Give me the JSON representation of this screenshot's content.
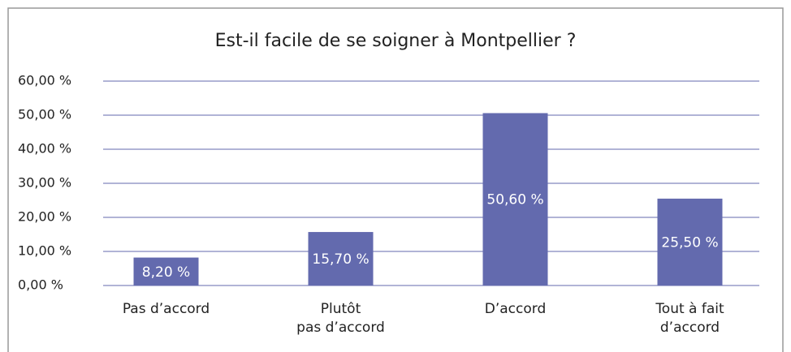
{
  "chart_data": {
    "type": "bar",
    "title": "Est-il facile de se soigner à Montpellier ?",
    "categories": [
      "Pas d’accord",
      "Plutôt\npas d’accord",
      "D’accord",
      "Tout à fait\nd’accord"
    ],
    "values": [
      8.2,
      15.7,
      50.6,
      25.5
    ],
    "value_labels": [
      "8,20 %",
      "15,70 %",
      "50,60 %",
      "25,50 %"
    ],
    "color": "#636aae",
    "ylim": [
      0,
      60
    ],
    "yticks": [
      {
        "value": 0,
        "label": "0,00 %"
      },
      {
        "value": 10,
        "label": "10,00 %"
      },
      {
        "value": 20,
        "label": "20,00 %"
      },
      {
        "value": 30,
        "label": "30,00 %"
      },
      {
        "value": 40,
        "label": "40,00 %"
      },
      {
        "value": 50,
        "label": "50,00 %"
      },
      {
        "value": 60,
        "label": "60,00 %"
      }
    ],
    "grid": true
  }
}
